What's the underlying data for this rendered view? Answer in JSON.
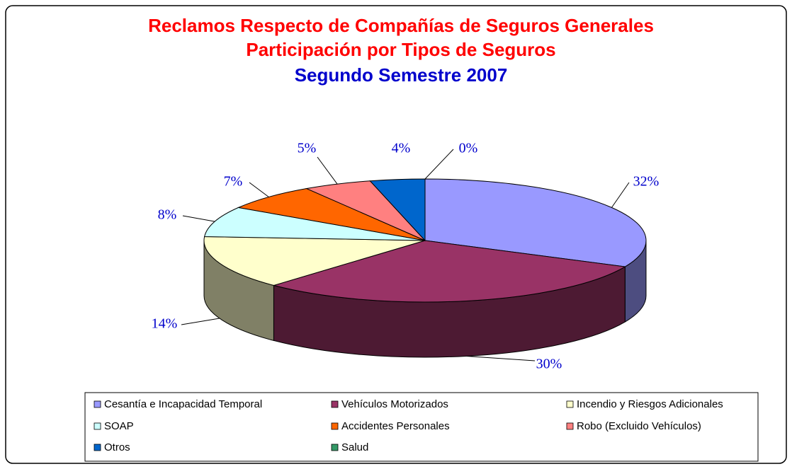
{
  "chart_data": {
    "type": "pie3d",
    "title": [
      "Reclamos Respecto de Compañías de Seguros Generales",
      "Participación por Tipos de Seguros"
    ],
    "subtitle": "Segundo Semestre 2007",
    "title_color": "#ff0000",
    "subtitle_color": "#0000cc",
    "label_color": "#0000cc",
    "categories": [
      "Cesantía e Incapacidad Temporal",
      "Vehículos Motorizados",
      "Incendio y Riesgos Adicionales",
      "SOAP",
      "Accidentes Personales",
      "Robo (Excluido Vehículos)",
      "Otros",
      "Salud"
    ],
    "values": [
      32,
      30,
      14,
      8,
      7,
      5,
      4,
      0
    ],
    "value_labels": [
      "32%",
      "30%",
      "14%",
      "8%",
      "7%",
      "5%",
      "4%",
      "0%"
    ],
    "colors": [
      "#9999ff",
      "#993366",
      "#ffffcc",
      "#ccffff",
      "#ff6600",
      "#ff8080",
      "#0066cc",
      "#339966"
    ],
    "legend": "bottom"
  }
}
